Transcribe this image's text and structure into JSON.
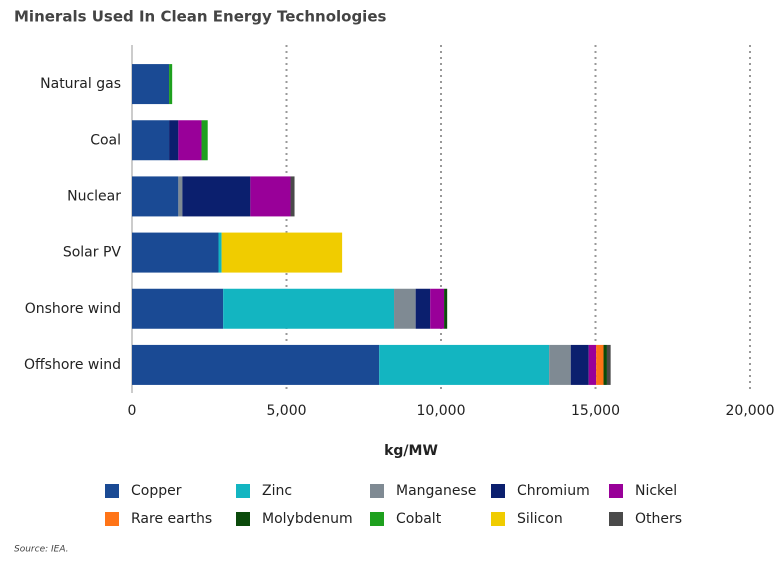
{
  "chart_data": {
    "type": "stacked-barh",
    "title": "Minerals Used In Clean Energy Technologies",
    "categories": [
      "Natural gas",
      "Coal",
      "Nuclear",
      "Solar PV",
      "Onshore wind",
      "Offshore wind"
    ],
    "series": [
      {
        "name": "Copper",
        "color": "#1a4a94",
        "values": [
          1200,
          1200,
          1500,
          2800,
          2950,
          8000
        ]
      },
      {
        "name": "Zinc",
        "color": "#13b5c1",
        "values": [
          0,
          0,
          0,
          100,
          5530,
          5500
        ]
      },
      {
        "name": "Manganese",
        "color": "#7f8a93",
        "values": [
          0,
          0,
          130,
          0,
          700,
          700
        ]
      },
      {
        "name": "Chromium",
        "color": "#0b1f6e",
        "values": [
          0,
          300,
          2200,
          0,
          470,
          580
        ]
      },
      {
        "name": "Nickel",
        "color": "#990099",
        "values": [
          0,
          750,
          1300,
          0,
          450,
          240
        ]
      },
      {
        "name": "Rare earths",
        "color": "#ff7417",
        "values": [
          0,
          0,
          0,
          0,
          0,
          240
        ]
      },
      {
        "name": "Molybdenum",
        "color": "#0b4a0b",
        "values": [
          0,
          0,
          0,
          0,
          100,
          110
        ]
      },
      {
        "name": "Cobalt",
        "color": "#1ea01e",
        "values": [
          100,
          200,
          0,
          0,
          0,
          0
        ]
      },
      {
        "name": "Silicon",
        "color": "#f0cc00",
        "values": [
          0,
          0,
          0,
          3900,
          0,
          0
        ]
      },
      {
        "name": "Others",
        "color": "#4a4a4a",
        "values": [
          0,
          0,
          130,
          0,
          0,
          120
        ]
      }
    ],
    "xlim": [
      0,
      20000
    ],
    "xticks": [
      0,
      {
        "value": 5000,
        "label": "5,000"
      },
      {
        "value": 10000,
        "label": "10,000"
      },
      {
        "value": 15000,
        "label": "15,000"
      },
      {
        "value": 20000,
        "label": "20,000"
      }
    ],
    "xlabel": "kg/MW",
    "grid": true,
    "source": "Source: IEA."
  }
}
